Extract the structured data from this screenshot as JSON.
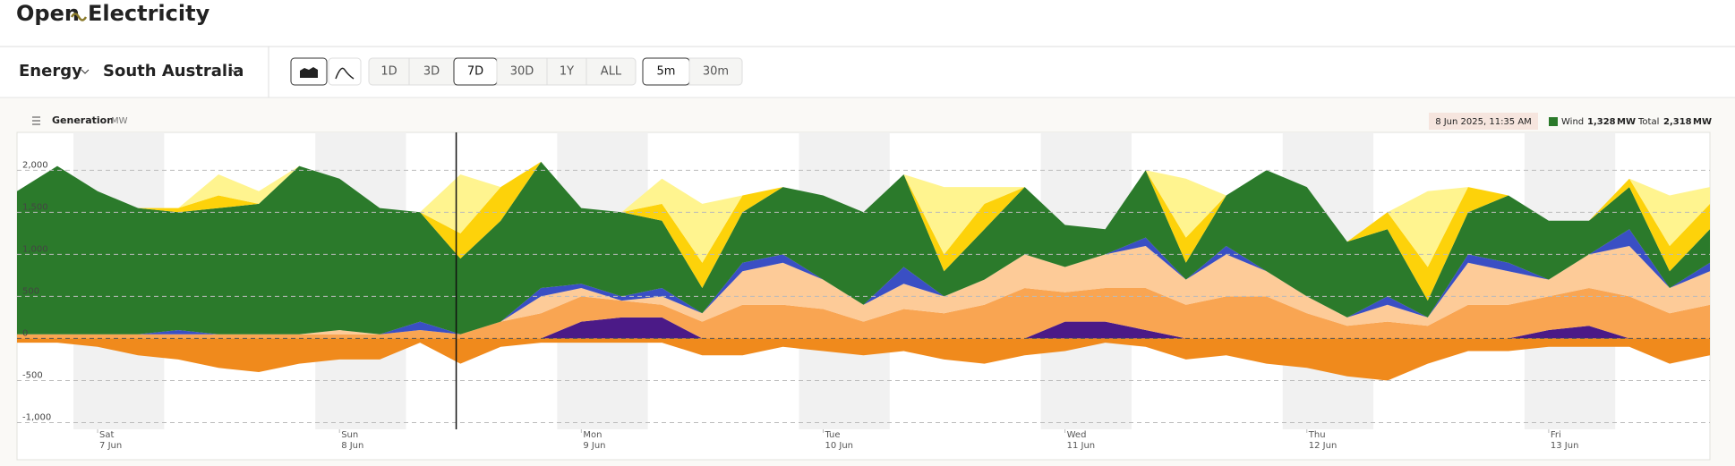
{
  "header": {
    "logo": [
      "Open",
      "Electricity"
    ]
  },
  "toolbar": {
    "metric": "Energy",
    "region": "South Australia",
    "ranges": [
      "1D",
      "3D",
      "7D",
      "30D",
      "1Y",
      "ALL"
    ],
    "active_range": 2,
    "intervals": [
      "5m",
      "30m"
    ],
    "active_interval": 0
  },
  "chart_data": {
    "type": "stacked-area",
    "title": "Generation",
    "unit": "MW",
    "x": [
      "2025-06-06T16:00",
      "2025-06-06T20:00",
      "2025-06-07T00:00",
      "2025-06-07T04:00",
      "2025-06-07T08:00",
      "2025-06-07T12:00",
      "2025-06-07T16:00",
      "2025-06-07T20:00",
      "2025-06-08T00:00",
      "2025-06-08T04:00",
      "2025-06-08T08:00",
      "2025-06-08T12:00",
      "2025-06-08T16:00",
      "2025-06-08T20:00",
      "2025-06-09T00:00",
      "2025-06-09T04:00",
      "2025-06-09T08:00",
      "2025-06-09T12:00",
      "2025-06-09T16:00",
      "2025-06-09T20:00",
      "2025-06-10T00:00",
      "2025-06-10T04:00",
      "2025-06-10T08:00",
      "2025-06-10T12:00",
      "2025-06-10T16:00",
      "2025-06-10T20:00",
      "2025-06-11T00:00",
      "2025-06-11T04:00",
      "2025-06-11T08:00",
      "2025-06-11T12:00",
      "2025-06-11T16:00",
      "2025-06-11T20:00",
      "2025-06-12T00:00",
      "2025-06-12T04:00",
      "2025-06-12T08:00",
      "2025-06-12T12:00",
      "2025-06-12T16:00",
      "2025-06-12T20:00",
      "2025-06-13T00:00",
      "2025-06-13T04:00",
      "2025-06-13T08:00",
      "2025-06-13T12:00",
      "2025-06-13T16:00"
    ],
    "series": [
      {
        "color": "#4b1a87",
        "values": [
          0,
          0,
          0,
          0,
          0,
          0,
          0,
          0,
          0,
          0,
          0,
          0,
          0,
          0,
          200,
          250,
          250,
          0,
          0,
          0,
          0,
          0,
          0,
          0,
          0,
          0,
          200,
          200,
          100,
          0,
          0,
          0,
          0,
          0,
          0,
          0,
          0,
          0,
          100,
          150,
          0,
          0,
          0
        ]
      },
      {
        "color": "#f9a552",
        "values": [
          50,
          50,
          50,
          50,
          50,
          50,
          50,
          50,
          50,
          50,
          100,
          50,
          200,
          300,
          300,
          200,
          150,
          200,
          400,
          400,
          350,
          200,
          350,
          300,
          400,
          600,
          350,
          400,
          500,
          400,
          500,
          500,
          300,
          150,
          200,
          150,
          400,
          400,
          400,
          450,
          500,
          300,
          400
        ]
      },
      {
        "color": "#fdcb98",
        "values": [
          0,
          0,
          0,
          0,
          0,
          0,
          0,
          0,
          50,
          0,
          0,
          0,
          0,
          200,
          100,
          0,
          100,
          100,
          400,
          500,
          350,
          200,
          300,
          200,
          300,
          400,
          300,
          400,
          500,
          300,
          500,
          300,
          200,
          100,
          200,
          100,
          500,
          400,
          200,
          400,
          600,
          300,
          400
        ]
      },
      {
        "color": "#3a4fc4",
        "values": [
          0,
          0,
          0,
          0,
          50,
          0,
          0,
          0,
          0,
          0,
          100,
          0,
          0,
          100,
          50,
          50,
          100,
          0,
          100,
          100,
          0,
          0,
          200,
          0,
          0,
          0,
          0,
          0,
          100,
          0,
          100,
          0,
          0,
          0,
          100,
          0,
          100,
          100,
          0,
          0,
          200,
          0,
          100
        ]
      },
      {
        "name": "Wind",
        "color": "#2b7a2b",
        "values": [
          1700,
          2000,
          1700,
          1500,
          1400,
          1500,
          1550,
          2000,
          1800,
          1500,
          1300,
          900,
          1200,
          1500,
          900,
          1000,
          800,
          300,
          600,
          800,
          1000,
          1100,
          1100,
          300,
          600,
          800,
          500,
          300,
          800,
          200,
          600,
          1200,
          1300,
          900,
          800,
          200,
          500,
          800,
          700,
          400,
          500,
          200,
          400
        ]
      },
      {
        "color": "#fdd20a",
        "values": [
          0,
          0,
          0,
          0,
          50,
          150,
          0,
          0,
          0,
          0,
          0,
          300,
          400,
          0,
          0,
          0,
          200,
          300,
          200,
          0,
          0,
          0,
          0,
          200,
          300,
          0,
          0,
          0,
          0,
          300,
          0,
          0,
          0,
          0,
          200,
          400,
          300,
          0,
          0,
          0,
          100,
          300,
          300
        ]
      },
      {
        "color": "#fff48f",
        "values": [
          0,
          0,
          0,
          0,
          0,
          250,
          150,
          0,
          0,
          0,
          0,
          700,
          0,
          0,
          0,
          0,
          300,
          700,
          0,
          0,
          0,
          0,
          0,
          800,
          200,
          0,
          0,
          0,
          0,
          700,
          0,
          0,
          0,
          0,
          0,
          900,
          0,
          0,
          0,
          0,
          0,
          600,
          200
        ]
      },
      {
        "color": "#f08a1c",
        "values": [
          -50,
          -50,
          -100,
          -200,
          -250,
          -350,
          -400,
          -300,
          -250,
          -250,
          -50,
          -300,
          -100,
          -50,
          -50,
          -50,
          -50,
          -200,
          -200,
          -100,
          -150,
          -200,
          -150,
          -250,
          -300,
          -200,
          -150,
          -50,
          -100,
          -250,
          -200,
          -300,
          -350,
          -450,
          -500,
          -300,
          -150,
          -150,
          -100,
          -100,
          -100,
          -300,
          -200
        ]
      }
    ],
    "xlim": [
      "2025-06-06T16:00",
      "2025-06-13T16:00"
    ],
    "xticks": [
      {
        "value": "2025-06-07T00:00",
        "label": "Sat",
        "date": "7 Jun"
      },
      {
        "value": "2025-06-08T00:00",
        "label": "Sun",
        "date": "8 Jun"
      },
      {
        "value": "2025-06-09T00:00",
        "label": "Mon",
        "date": "9 Jun"
      },
      {
        "value": "2025-06-10T00:00",
        "label": "Tue",
        "date": "10 Jun"
      },
      {
        "value": "2025-06-11T00:00",
        "label": "Wed",
        "date": "11 Jun"
      },
      {
        "value": "2025-06-12T00:00",
        "label": "Thu",
        "date": "12 Jun"
      },
      {
        "value": "2025-06-13T00:00",
        "label": "Fri",
        "date": "13 Jun"
      }
    ],
    "ylim": [
      -1080,
      2450
    ],
    "yticks": [
      {
        "value": 2000,
        "label": "2,000"
      },
      {
        "value": 1500,
        "label": "1,500"
      },
      {
        "value": 1000,
        "label": "1,000"
      },
      500,
      0,
      -500,
      {
        "value": -1000,
        "label": "-1,000"
      }
    ],
    "grid": true,
    "tooltip": {
      "label": "8 Jun 2025, 11:35 AM",
      "x": "2025-06-08T11:35",
      "wind": 1328,
      "wind_label": "1,328",
      "total_name": "Total",
      "total": 2318,
      "total_label": "2,318"
    }
  }
}
